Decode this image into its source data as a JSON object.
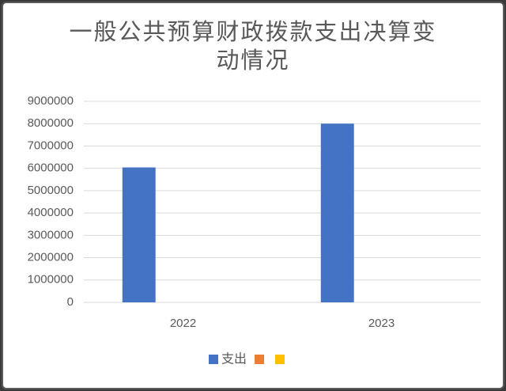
{
  "chart_data": {
    "type": "bar",
    "title": "一般公共预算财政拨款支出决算变动情况",
    "categories": [
      "2022",
      "2023"
    ],
    "series": [
      {
        "name": "支出",
        "color": "#4472c4",
        "values": [
          6040000,
          8000000
        ]
      },
      {
        "color": "#ed7d31",
        "values": [
          null,
          null
        ]
      },
      {
        "color": "#ffc000",
        "values": [
          null,
          null
        ]
      }
    ],
    "ylim": [
      0,
      9000000
    ],
    "yticks": [
      0,
      1000000,
      2000000,
      3000000,
      4000000,
      5000000,
      6000000,
      7000000,
      8000000,
      9000000
    ],
    "grid": true,
    "legend": "bottom"
  }
}
